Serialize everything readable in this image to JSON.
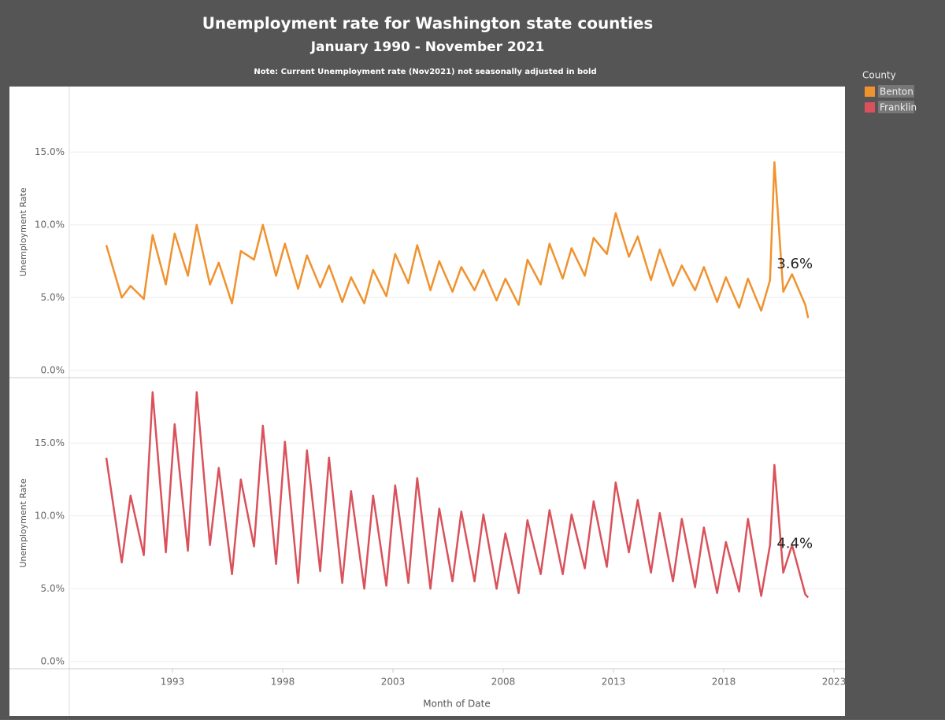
{
  "chart_data": {
    "type": "line",
    "title": "Unemployment rate for Washington state counties",
    "subtitle": "January 1990 - November 2021",
    "note": "Note:  Current Unemployment rate (Nov2021) not seasonally adjusted in bold",
    "x_label": "Month of Date",
    "y_label": "Unemployment Rate",
    "legend_title": "County",
    "x": [
      1990.0,
      1990.7,
      1991.1,
      1991.7,
      1992.1,
      1992.7,
      1993.1,
      1993.7,
      1994.1,
      1994.7,
      1995.1,
      1995.7,
      1996.1,
      1996.7,
      1997.1,
      1997.7,
      1998.1,
      1998.7,
      1999.1,
      1999.7,
      2000.1,
      2000.7,
      2001.1,
      2001.7,
      2002.1,
      2002.7,
      2003.1,
      2003.7,
      2004.1,
      2004.7,
      2005.1,
      2005.7,
      2006.1,
      2006.7,
      2007.1,
      2007.7,
      2008.1,
      2008.7,
      2009.1,
      2009.7,
      2010.1,
      2010.7,
      2011.1,
      2011.7,
      2012.1,
      2012.7,
      2013.1,
      2013.7,
      2014.1,
      2014.7,
      2015.1,
      2015.7,
      2016.1,
      2016.7,
      2017.1,
      2017.7,
      2018.1,
      2018.7,
      2019.1,
      2019.7,
      2020.1,
      2020.3,
      2020.7,
      2021.1,
      2021.7,
      2021.83
    ],
    "xlim": [
      1988.32,
      2023.5
    ],
    "xticks": [
      1993,
      1998,
      2003,
      2008,
      2013,
      2018,
      2023
    ],
    "ylim": [
      -0.5,
      19.5
    ],
    "yticks": [
      {
        "value": 0,
        "label": "0.0%"
      },
      {
        "value": 5,
        "label": "5.0%"
      },
      {
        "value": 10,
        "label": "10.0%"
      },
      {
        "value": 15,
        "label": "15.0%"
      }
    ],
    "grid": true,
    "series": [
      {
        "name": "Benton",
        "color": "#f0922e",
        "values": [
          8.6,
          5.0,
          5.8,
          4.9,
          9.3,
          5.9,
          9.4,
          6.5,
          10.0,
          5.9,
          7.4,
          4.6,
          8.2,
          7.6,
          10.0,
          6.5,
          8.7,
          5.6,
          7.9,
          5.7,
          7.2,
          4.7,
          6.4,
          4.6,
          6.9,
          5.1,
          8.0,
          6.0,
          8.6,
          5.5,
          7.5,
          5.4,
          7.1,
          5.5,
          6.9,
          4.8,
          6.3,
          4.5,
          7.6,
          5.9,
          8.7,
          6.3,
          8.4,
          6.5,
          9.1,
          8.0,
          10.8,
          7.8,
          9.2,
          6.2,
          8.3,
          5.8,
          7.2,
          5.5,
          7.1,
          4.7,
          6.4,
          4.3,
          6.3,
          4.1,
          6.2,
          14.3,
          5.4,
          6.6,
          4.5,
          3.6
        ],
        "value_labels": [
          null,
          null,
          null,
          null,
          null,
          null,
          null,
          null,
          null,
          null,
          null,
          null,
          null,
          null,
          null,
          null,
          null,
          null,
          null,
          null,
          null,
          null,
          null,
          null,
          null,
          null,
          null,
          null,
          null,
          null,
          null,
          null,
          null,
          null,
          null,
          null,
          null,
          null,
          null,
          null,
          null,
          null,
          null,
          null,
          null,
          null,
          null,
          null,
          null,
          null,
          null,
          null,
          null,
          null,
          null,
          null,
          null,
          null,
          null,
          null,
          null,
          null,
          null,
          null,
          null,
          "3.6%"
        ]
      },
      {
        "name": "Franklin",
        "color": "#d9525b",
        "values": [
          14.0,
          6.8,
          11.4,
          7.3,
          18.5,
          7.5,
          16.3,
          7.6,
          18.5,
          8.0,
          13.3,
          6.0,
          12.5,
          7.9,
          16.2,
          6.7,
          15.1,
          5.4,
          14.5,
          6.2,
          14.0,
          5.4,
          11.7,
          5.0,
          11.4,
          5.2,
          12.1,
          5.4,
          12.6,
          5.0,
          10.5,
          5.5,
          10.3,
          5.5,
          10.1,
          5.0,
          8.8,
          4.7,
          9.7,
          6.0,
          10.4,
          6.0,
          10.1,
          6.4,
          11.0,
          6.5,
          12.3,
          7.5,
          11.1,
          6.1,
          10.2,
          5.5,
          9.8,
          5.1,
          9.2,
          4.7,
          8.2,
          4.8,
          9.8,
          4.5,
          8.0,
          13.5,
          6.1,
          8.0,
          4.6,
          4.4
        ],
        "value_labels": [
          null,
          null,
          null,
          null,
          null,
          null,
          null,
          null,
          null,
          null,
          null,
          null,
          null,
          null,
          null,
          null,
          null,
          null,
          null,
          null,
          null,
          null,
          null,
          null,
          null,
          null,
          null,
          null,
          null,
          null,
          null,
          null,
          null,
          null,
          null,
          null,
          null,
          null,
          null,
          null,
          null,
          null,
          null,
          null,
          null,
          null,
          null,
          null,
          null,
          null,
          null,
          null,
          null,
          null,
          null,
          null,
          null,
          null,
          null,
          null,
          null,
          null,
          null,
          null,
          null,
          "4.4%"
        ]
      }
    ]
  }
}
